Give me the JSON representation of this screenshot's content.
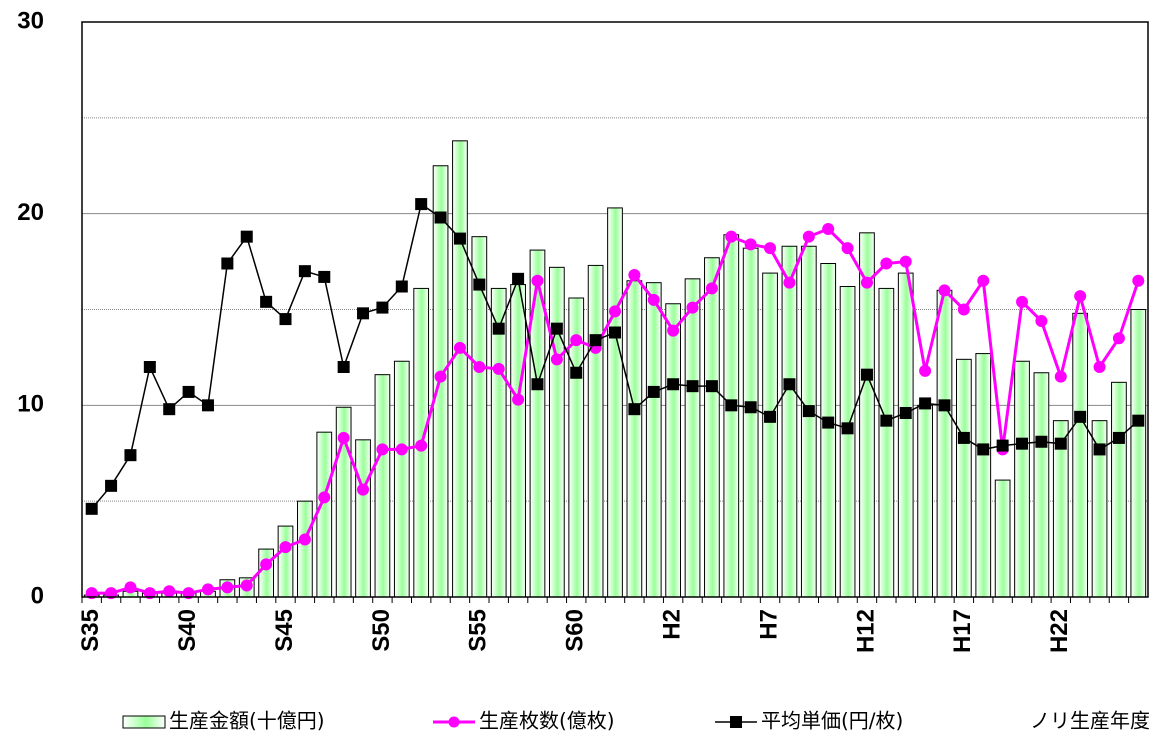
{
  "chart_data": {
    "type": "bar-line",
    "x_label": "ノリ生産年度",
    "categories": [
      "S35",
      null,
      null,
      null,
      null,
      "S40",
      null,
      null,
      null,
      null,
      "S45",
      null,
      null,
      null,
      null,
      "S50",
      null,
      null,
      null,
      null,
      "S55",
      null,
      null,
      null,
      null,
      "S60",
      null,
      null,
      null,
      null,
      "H2",
      null,
      null,
      null,
      null,
      "H7",
      null,
      null,
      null,
      null,
      "H12",
      null,
      null,
      null,
      null,
      "H17",
      null,
      null,
      null,
      null,
      "H22",
      null,
      null,
      null,
      null
    ],
    "series": [
      {
        "name": "生産金額(十億円)",
        "type": "bar",
        "color": "#99ff99",
        "values": [
          0.1,
          0.1,
          0.3,
          0.2,
          0.2,
          0.2,
          0.3,
          0.9,
          1.0,
          2.5,
          3.7,
          5.0,
          8.6,
          9.9,
          8.2,
          11.6,
          12.3,
          16.1,
          22.5,
          23.8,
          18.8,
          16.1,
          16.3,
          18.1,
          17.2,
          15.6,
          17.3,
          20.3,
          16.5,
          16.4,
          15.3,
          16.6,
          17.7,
          18.9,
          18.2,
          16.9,
          18.3,
          18.3,
          17.4,
          16.2,
          19.0,
          16.1,
          16.9,
          10.0,
          16.0,
          12.4,
          12.7,
          6.1,
          12.3,
          11.7,
          9.2,
          14.8,
          9.2,
          11.2,
          15.0
        ]
      },
      {
        "name": "生産枚数(億枚)",
        "type": "line",
        "marker": "circle",
        "color": "#ff00ff",
        "values": [
          0.2,
          0.2,
          0.5,
          0.2,
          0.3,
          0.2,
          0.4,
          0.5,
          0.6,
          1.7,
          2.6,
          3.0,
          5.2,
          8.3,
          5.6,
          7.7,
          7.7,
          7.9,
          11.5,
          13.0,
          12.0,
          11.9,
          10.3,
          16.5,
          12.4,
          13.4,
          13.0,
          14.9,
          16.8,
          15.5,
          13.9,
          15.1,
          16.1,
          18.8,
          18.4,
          18.2,
          16.4,
          18.8,
          19.2,
          18.2,
          16.4,
          17.4,
          17.5,
          11.8,
          16.0,
          15.0,
          16.5,
          7.7,
          15.4,
          14.4,
          11.5,
          15.7,
          12.0,
          13.5,
          16.5
        ]
      },
      {
        "name": "平均単価(円/枚)",
        "type": "line",
        "marker": "square",
        "color": "#000000",
        "values": [
          4.6,
          5.8,
          7.4,
          12.0,
          9.8,
          10.7,
          10.0,
          17.4,
          18.8,
          15.4,
          14.5,
          17.0,
          16.7,
          12.0,
          14.8,
          15.1,
          16.2,
          20.5,
          19.8,
          18.7,
          16.3,
          14.0,
          16.6,
          11.1,
          14.0,
          11.7,
          13.4,
          13.8,
          9.8,
          10.7,
          11.1,
          11.0,
          11.0,
          10.0,
          9.9,
          9.4,
          11.1,
          9.7,
          9.1,
          8.8,
          11.6,
          9.2,
          9.6,
          10.1,
          10.0,
          8.3,
          7.7,
          7.9,
          8.0,
          8.1,
          8.0,
          9.4,
          7.7,
          8.3,
          9.2
        ]
      }
    ],
    "ylim": [
      0,
      30
    ],
    "yticks": [
      0,
      10,
      20,
      30
    ],
    "minor_yticks": [
      5,
      15,
      25
    ],
    "grid": true
  }
}
